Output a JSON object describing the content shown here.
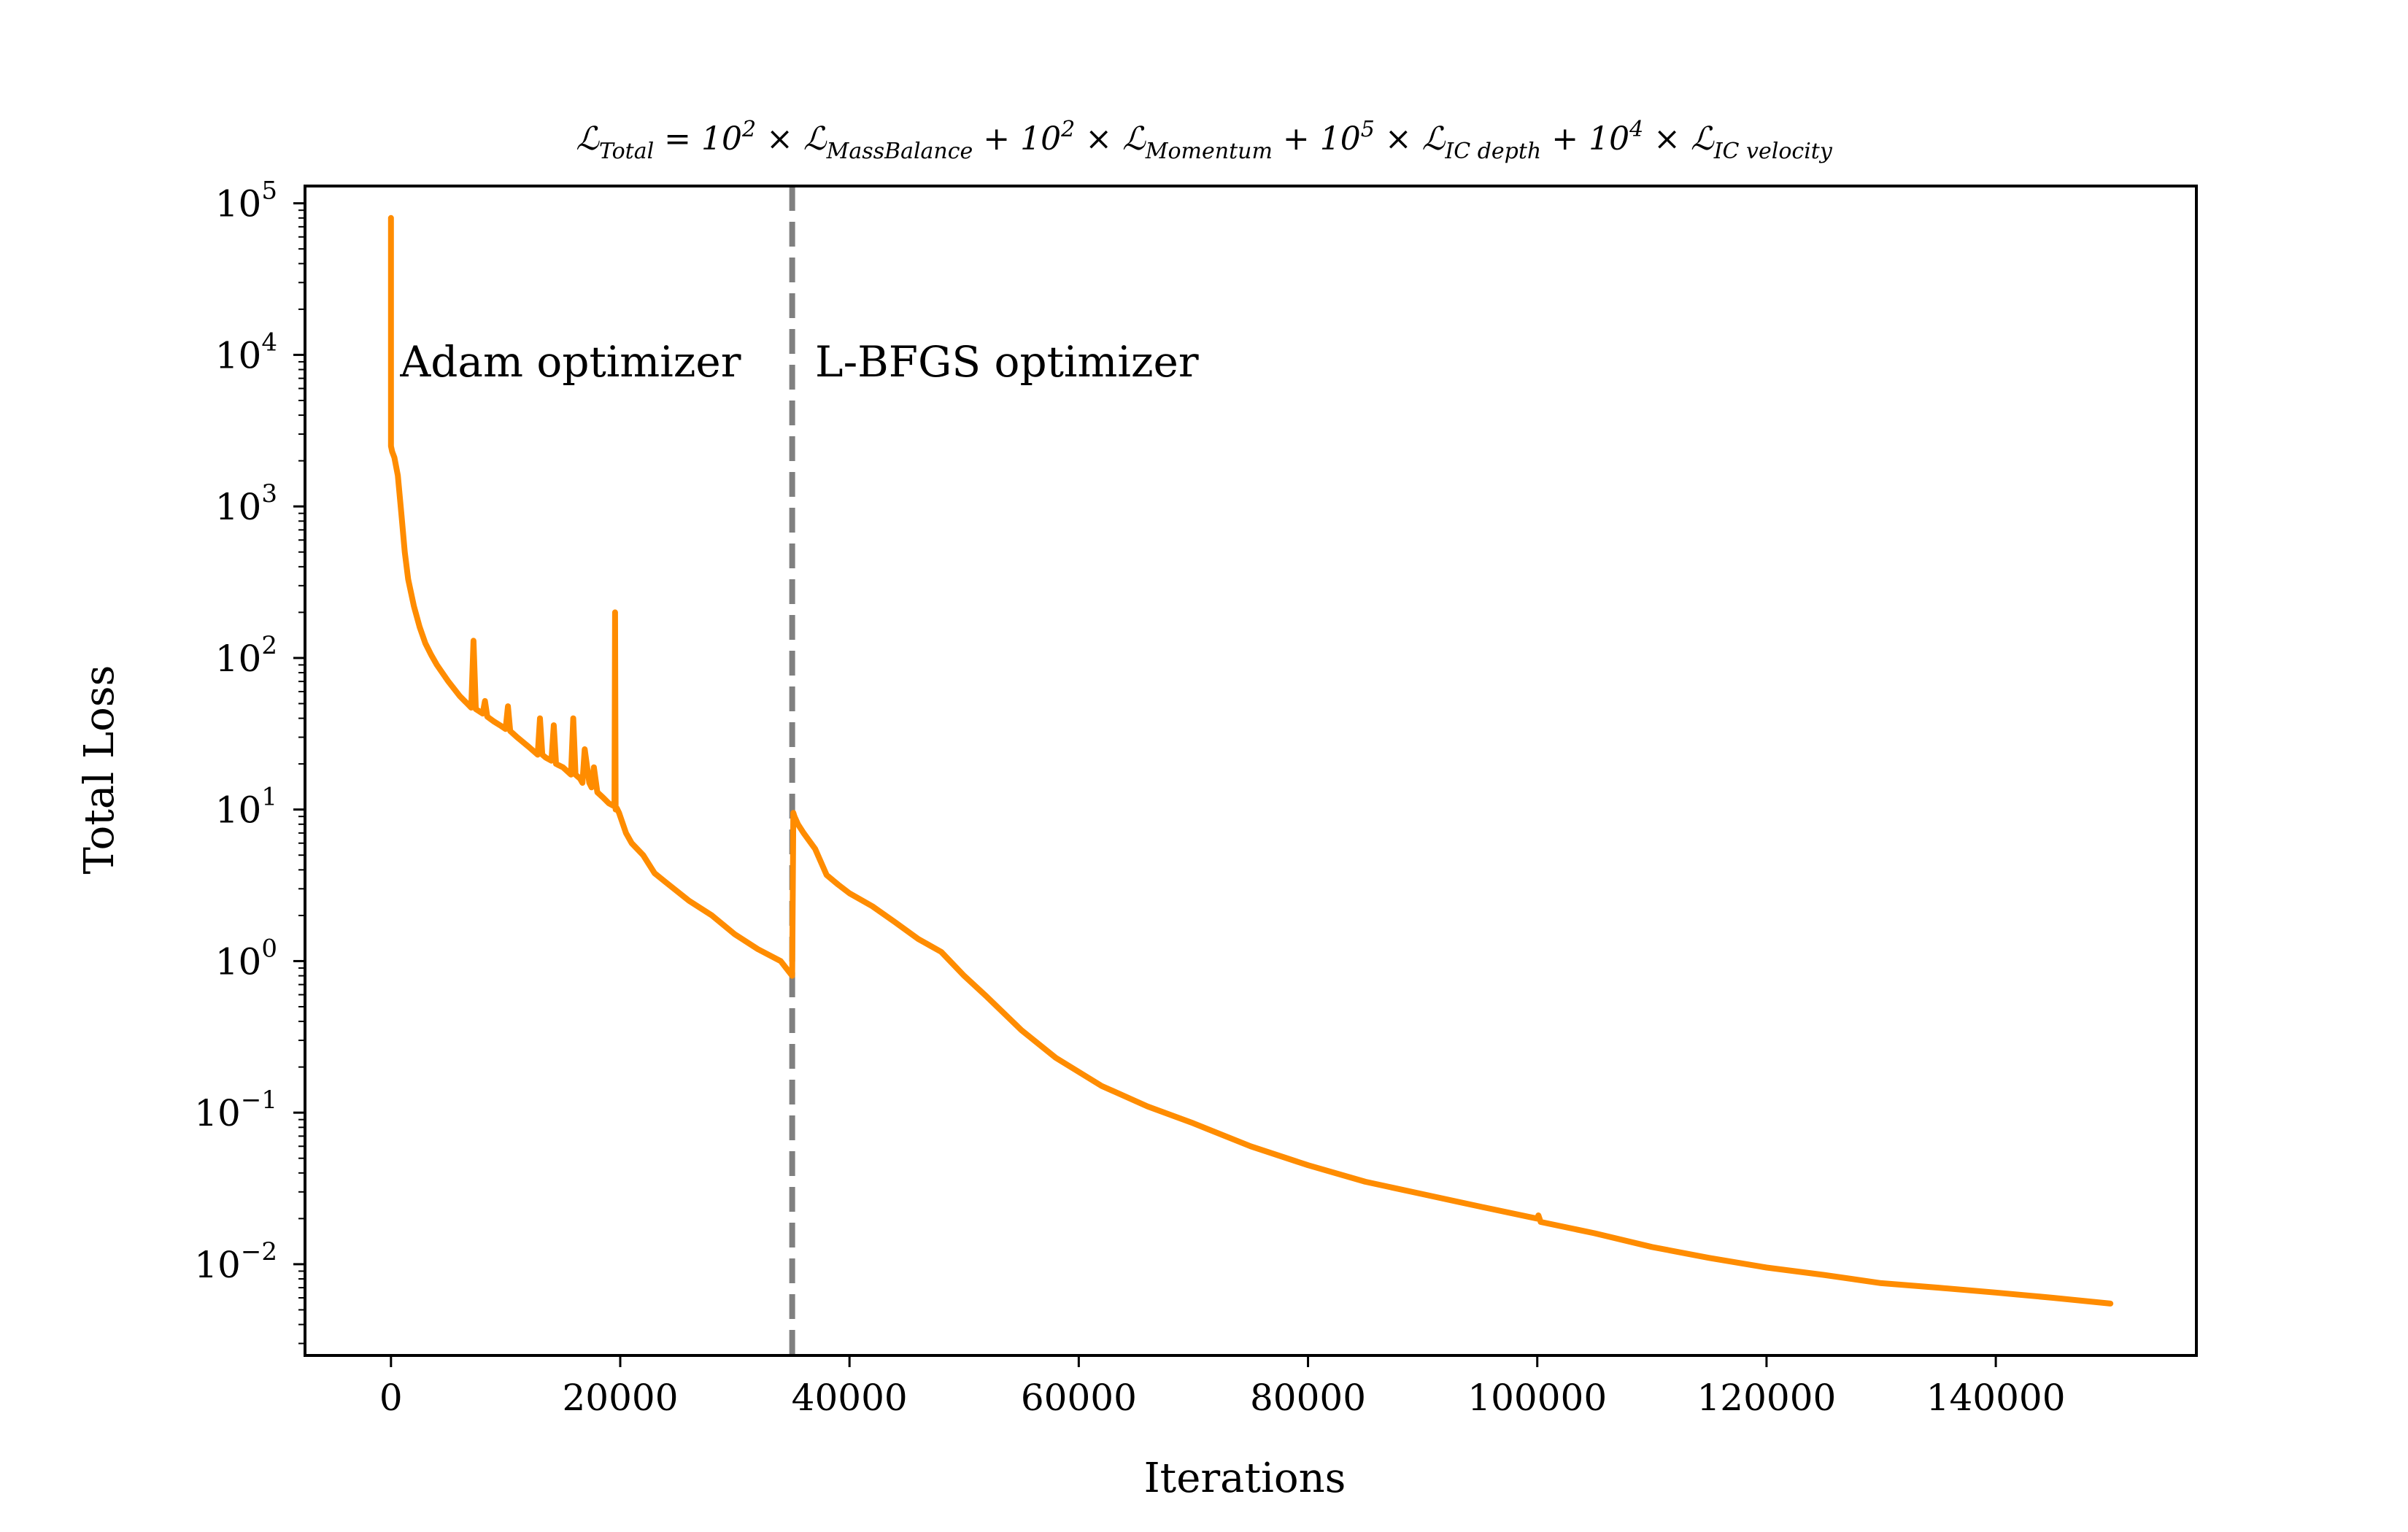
{
  "chart_data": {
    "type": "line",
    "title_parts": [
      "ℒ",
      "Total",
      " = 10",
      "2",
      " × ℒ",
      "MassBalance",
      " + 10",
      "2",
      " × ℒ",
      "Momentum",
      " + 10",
      "5",
      " × ℒ",
      "IC depth",
      " + 10",
      "4",
      " × ℒ",
      "IC velocity"
    ],
    "xlabel": "Iterations",
    "ylabel": "Total Loss",
    "yscale": "log",
    "xlim": [
      -7500,
      157500
    ],
    "ylim": [
      0.0025,
      130000
    ],
    "x_ticks": [
      {
        "value": 0,
        "label": "0"
      },
      {
        "value": 20000,
        "label": "20000"
      },
      {
        "value": 40000,
        "label": "40000"
      },
      {
        "value": 60000,
        "label": "60000"
      },
      {
        "value": 80000,
        "label": "80000"
      },
      {
        "value": 100000,
        "label": "100000"
      },
      {
        "value": 120000,
        "label": "120000"
      },
      {
        "value": 140000,
        "label": "140000"
      }
    ],
    "y_ticks": [
      {
        "value": 0.01,
        "base": "10",
        "exp": "−2"
      },
      {
        "value": 0.1,
        "base": "10",
        "exp": "−1"
      },
      {
        "value": 1,
        "base": "10",
        "exp": "0"
      },
      {
        "value": 10,
        "base": "10",
        "exp": "1"
      },
      {
        "value": 100,
        "base": "10",
        "exp": "2"
      },
      {
        "value": 1000,
        "base": "10",
        "exp": "3"
      },
      {
        "value": 10000,
        "base": "10",
        "exp": "4"
      },
      {
        "value": 100000,
        "base": "10",
        "exp": "5"
      }
    ],
    "annotations": [
      {
        "text": "Adam optimizer",
        "x": 800,
        "y": 9000
      },
      {
        "text": "L-BFGS optimizer",
        "x": 37000,
        "y": 9000
      }
    ],
    "vline": {
      "x": 35000,
      "style": "dashed",
      "color": "#808080"
    },
    "series": [
      {
        "name": "Total Loss",
        "color": "#ff8c00",
        "x": [
          0,
          0,
          50,
          100,
          300,
          600,
          900,
          1200,
          1500,
          2000,
          2500,
          3000,
          3500,
          4000,
          5000,
          6000,
          7000,
          7200,
          7400,
          7600,
          8000,
          8200,
          8400,
          9000,
          9500,
          10000,
          10200,
          10400,
          11000,
          12000,
          12800,
          13000,
          13200,
          13500,
          14000,
          14200,
          14400,
          15000,
          15700,
          15900,
          16100,
          16500,
          16700,
          16900,
          17300,
          17500,
          17700,
          18000,
          18500,
          19000,
          19500,
          19550,
          19600,
          19700,
          19900,
          20500,
          21000,
          22000,
          23000,
          24000,
          26000,
          28000,
          30000,
          32000,
          34000,
          35000,
          35100,
          35200,
          35500,
          36000,
          37000,
          38000,
          39000,
          40000,
          42000,
          44000,
          46000,
          48000,
          50000,
          52000,
          55000,
          58000,
          62000,
          66000,
          70000,
          75000,
          80000,
          85000,
          90000,
          95000,
          100000,
          100100,
          100300,
          105000,
          110000,
          115000,
          120000,
          125000,
          130000,
          135000,
          140000,
          145000,
          150000
        ],
        "y": [
          80000,
          2500,
          2400,
          2300,
          2100,
          1600,
          900,
          500,
          330,
          220,
          160,
          125,
          105,
          90,
          70,
          56,
          47,
          130,
          46,
          45,
          43,
          52,
          41,
          38,
          36,
          34,
          48,
          33,
          30,
          26,
          23,
          40,
          23,
          22,
          21,
          36,
          20,
          19,
          17,
          40,
          17,
          16,
          15,
          25,
          15,
          14,
          19,
          13,
          12,
          11,
          10.5,
          200,
          10,
          10.2,
          9.5,
          7,
          6,
          5,
          3.8,
          3.3,
          2.5,
          2,
          1.5,
          1.2,
          1.0,
          0.8,
          9.5,
          9,
          8,
          7,
          5.5,
          3.7,
          3.2,
          2.8,
          2.3,
          1.8,
          1.4,
          1.15,
          0.8,
          0.58,
          0.35,
          0.23,
          0.15,
          0.11,
          0.085,
          0.06,
          0.045,
          0.035,
          0.029,
          0.024,
          0.02,
          0.021,
          0.019,
          0.016,
          0.013,
          0.011,
          0.0095,
          0.0085,
          0.0075,
          0.007,
          0.0065,
          0.006,
          0.0055
        ]
      }
    ]
  }
}
